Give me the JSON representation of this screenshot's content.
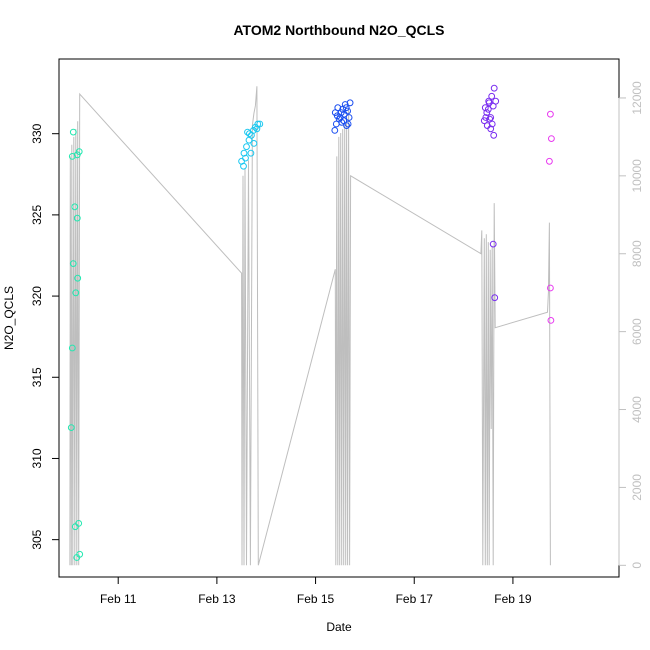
{
  "chart_data": {
    "type": "scatter",
    "title": "ATOM2 Northbound N2O_QCLS",
    "xlabel": "Date",
    "ylabel": "N2O_QCLS",
    "x_ticks": [
      "Feb 11",
      "Feb 13",
      "Feb 15",
      "Feb 17",
      "Feb 19"
    ],
    "x_tick_days": [
      11,
      13,
      15,
      17,
      19
    ],
    "xlim": [
      9.8,
      21.15
    ],
    "ylim": [
      302.7,
      334.6
    ],
    "y_ticks": [
      305,
      310,
      315,
      320,
      325,
      330
    ],
    "y2lim": [
      -300,
      13000
    ],
    "y2_ticks": [
      0,
      2000,
      4000,
      6000,
      8000,
      10000,
      12000
    ],
    "grid": false,
    "legend": "none",
    "colors": {
      "axis": "#000000",
      "secondary": "#c0c0c0",
      "altitude_line": "#bebebe",
      "point_palette": [
        "#22e8b0",
        "#1cc8f0",
        "#1a4ef0",
        "#7a2ef0",
        "#e83af0"
      ]
    },
    "series": [
      {
        "axis": "left",
        "style": "points",
        "points": [
          {
            "x": 10.09,
            "y": 330.1,
            "c": 0
          },
          {
            "x": 10.07,
            "y": 328.6,
            "c": 0
          },
          {
            "x": 10.17,
            "y": 328.7,
            "c": 0
          },
          {
            "x": 10.21,
            "y": 328.9,
            "c": 0
          },
          {
            "x": 10.12,
            "y": 325.5,
            "c": 0
          },
          {
            "x": 10.17,
            "y": 324.8,
            "c": 0
          },
          {
            "x": 10.09,
            "y": 322.0,
            "c": 0
          },
          {
            "x": 10.18,
            "y": 321.1,
            "c": 0
          },
          {
            "x": 10.14,
            "y": 320.2,
            "c": 0
          },
          {
            "x": 10.07,
            "y": 316.8,
            "c": 0
          },
          {
            "x": 10.05,
            "y": 311.9,
            "c": 0
          },
          {
            "x": 10.13,
            "y": 305.8,
            "c": 0
          },
          {
            "x": 10.2,
            "y": 306.0,
            "c": 0
          },
          {
            "x": 10.16,
            "y": 303.9,
            "c": 0
          },
          {
            "x": 10.22,
            "y": 304.1,
            "c": 0
          },
          {
            "x": 13.5,
            "y": 328.3,
            "c": 1
          },
          {
            "x": 13.55,
            "y": 328.8,
            "c": 1
          },
          {
            "x": 13.6,
            "y": 329.2,
            "c": 1
          },
          {
            "x": 13.65,
            "y": 329.6,
            "c": 1
          },
          {
            "x": 13.7,
            "y": 329.9,
            "c": 1
          },
          {
            "x": 13.74,
            "y": 330.2,
            "c": 1
          },
          {
            "x": 13.78,
            "y": 330.4,
            "c": 1
          },
          {
            "x": 13.83,
            "y": 330.6,
            "c": 1
          },
          {
            "x": 13.87,
            "y": 330.6,
            "c": 1
          },
          {
            "x": 13.54,
            "y": 328.0,
            "c": 1
          },
          {
            "x": 13.62,
            "y": 330.1,
            "c": 1
          },
          {
            "x": 13.69,
            "y": 328.8,
            "c": 1
          },
          {
            "x": 13.58,
            "y": 328.5,
            "c": 1
          },
          {
            "x": 13.81,
            "y": 330.3,
            "c": 1
          },
          {
            "x": 13.66,
            "y": 330.0,
            "c": 1
          },
          {
            "x": 13.75,
            "y": 329.4,
            "c": 1
          },
          {
            "x": 15.4,
            "y": 331.3,
            "c": 2
          },
          {
            "x": 15.45,
            "y": 331.6,
            "c": 2
          },
          {
            "x": 15.5,
            "y": 331.0,
            "c": 2
          },
          {
            "x": 15.55,
            "y": 331.5,
            "c": 2
          },
          {
            "x": 15.6,
            "y": 331.8,
            "c": 2
          },
          {
            "x": 15.65,
            "y": 331.4,
            "c": 2
          },
          {
            "x": 15.7,
            "y": 331.9,
            "c": 2
          },
          {
            "x": 15.42,
            "y": 330.6,
            "c": 2
          },
          {
            "x": 15.48,
            "y": 330.9,
            "c": 2
          },
          {
            "x": 15.53,
            "y": 330.7,
            "c": 2
          },
          {
            "x": 15.58,
            "y": 331.2,
            "c": 2
          },
          {
            "x": 15.63,
            "y": 330.5,
            "c": 2
          },
          {
            "x": 15.68,
            "y": 331.0,
            "c": 2
          },
          {
            "x": 15.44,
            "y": 331.1,
            "c": 2
          },
          {
            "x": 15.52,
            "y": 331.3,
            "c": 2
          },
          {
            "x": 15.57,
            "y": 330.8,
            "c": 2
          },
          {
            "x": 15.62,
            "y": 331.6,
            "c": 2
          },
          {
            "x": 15.39,
            "y": 330.2,
            "c": 2
          },
          {
            "x": 15.66,
            "y": 330.6,
            "c": 2
          },
          {
            "x": 18.42,
            "y": 330.8,
            "c": 3
          },
          {
            "x": 18.47,
            "y": 331.3,
            "c": 3
          },
          {
            "x": 18.52,
            "y": 331.9,
            "c": 3
          },
          {
            "x": 18.57,
            "y": 332.3,
            "c": 3
          },
          {
            "x": 18.62,
            "y": 332.8,
            "c": 3
          },
          {
            "x": 18.45,
            "y": 331.0,
            "c": 3
          },
          {
            "x": 18.5,
            "y": 331.5,
            "c": 3
          },
          {
            "x": 18.55,
            "y": 331.0,
            "c": 3
          },
          {
            "x": 18.6,
            "y": 331.7,
            "c": 3
          },
          {
            "x": 18.65,
            "y": 332.0,
            "c": 3
          },
          {
            "x": 18.48,
            "y": 330.5,
            "c": 3
          },
          {
            "x": 18.53,
            "y": 330.9,
            "c": 3
          },
          {
            "x": 18.58,
            "y": 330.6,
            "c": 3
          },
          {
            "x": 18.44,
            "y": 331.6,
            "c": 3
          },
          {
            "x": 18.55,
            "y": 330.3,
            "c": 3
          },
          {
            "x": 18.61,
            "y": 329.9,
            "c": 3
          },
          {
            "x": 18.51,
            "y": 332.0,
            "c": 3
          },
          {
            "x": 18.6,
            "y": 323.2,
            "c": 3
          },
          {
            "x": 18.63,
            "y": 319.9,
            "c": 3
          },
          {
            "x": 19.76,
            "y": 331.2,
            "c": 4
          },
          {
            "x": 19.78,
            "y": 329.7,
            "c": 4
          },
          {
            "x": 19.74,
            "y": 328.3,
            "c": 4
          },
          {
            "x": 19.76,
            "y": 320.5,
            "c": 4
          },
          {
            "x": 19.77,
            "y": 318.5,
            "c": 4
          }
        ]
      },
      {
        "axis": "right",
        "style": "line",
        "points": [
          [
            10.02,
            0
          ],
          [
            10.03,
            10500
          ],
          [
            10.05,
            0
          ],
          [
            10.06,
            10800
          ],
          [
            10.08,
            0
          ],
          [
            10.1,
            11000
          ],
          [
            10.12,
            0
          ],
          [
            10.14,
            11200
          ],
          [
            10.16,
            0
          ],
          [
            10.18,
            11400
          ],
          [
            10.2,
            0
          ],
          [
            10.22,
            12100
          ],
          [
            13.5,
            7500
          ],
          [
            13.51,
            0
          ],
          [
            13.53,
            10000
          ],
          [
            13.55,
            0
          ],
          [
            13.57,
            10200
          ],
          [
            13.6,
            0
          ],
          [
            13.64,
            10400
          ],
          [
            13.68,
            0
          ],
          [
            13.72,
            11300
          ],
          [
            13.75,
            11600
          ],
          [
            13.78,
            11800
          ],
          [
            13.81,
            12300
          ],
          [
            13.84,
            0
          ],
          [
            15.4,
            7600
          ],
          [
            15.41,
            0
          ],
          [
            15.43,
            10500
          ],
          [
            15.45,
            0
          ],
          [
            15.47,
            11000
          ],
          [
            15.49,
            0
          ],
          [
            15.51,
            11100
          ],
          [
            15.53,
            0
          ],
          [
            15.55,
            11200
          ],
          [
            15.57,
            0
          ],
          [
            15.59,
            11300
          ],
          [
            15.61,
            0
          ],
          [
            15.63,
            11500
          ],
          [
            15.65,
            0
          ],
          [
            15.67,
            11700
          ],
          [
            15.69,
            0
          ],
          [
            15.71,
            10000
          ],
          [
            18.35,
            8000
          ],
          [
            18.37,
            8600
          ],
          [
            18.39,
            0
          ],
          [
            18.42,
            8400
          ],
          [
            18.44,
            0
          ],
          [
            18.46,
            8500
          ],
          [
            18.48,
            0
          ],
          [
            18.5,
            8300
          ],
          [
            18.52,
            0
          ],
          [
            18.54,
            8100
          ],
          [
            18.56,
            3500
          ],
          [
            18.58,
            8200
          ],
          [
            18.6,
            0
          ],
          [
            18.62,
            9300
          ],
          [
            18.64,
            6100
          ],
          [
            19.7,
            6500
          ],
          [
            19.72,
            7000
          ],
          [
            19.74,
            8800
          ],
          [
            19.76,
            0
          ]
        ]
      }
    ]
  }
}
